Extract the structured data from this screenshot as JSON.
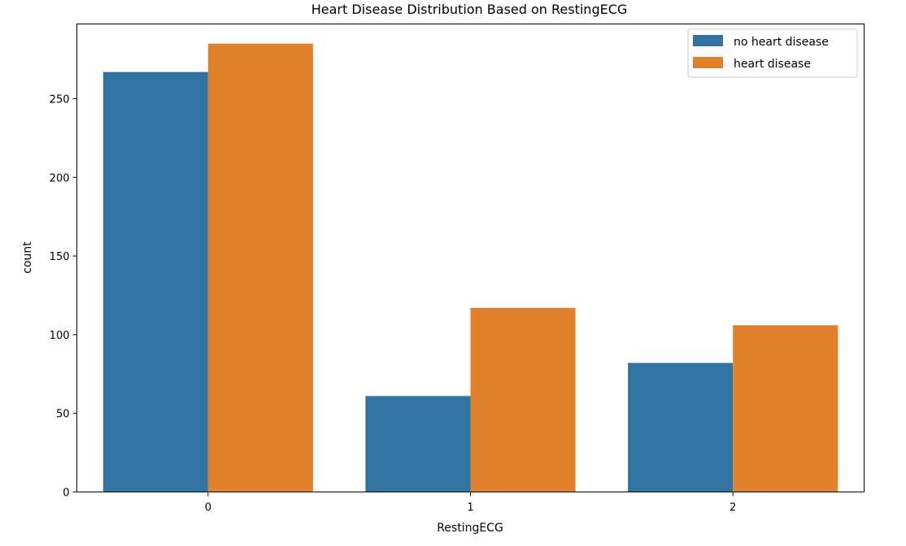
{
  "chart_data": {
    "type": "bar",
    "title": "Heart Disease Distribution Based on RestingECG",
    "xlabel": "RestingECG",
    "ylabel": "count",
    "categories": [
      "0",
      "1",
      "2"
    ],
    "series": [
      {
        "name": "no heart disease",
        "color": "#3274a1",
        "values": [
          267,
          61,
          82
        ]
      },
      {
        "name": "heart disease",
        "color": "#e1812c",
        "values": [
          285,
          117,
          106
        ]
      }
    ],
    "ylim": [
      0,
      297.5
    ],
    "yticks": [
      0,
      50,
      100,
      150,
      200,
      250
    ],
    "grid": false,
    "legend_position": "top-right"
  }
}
